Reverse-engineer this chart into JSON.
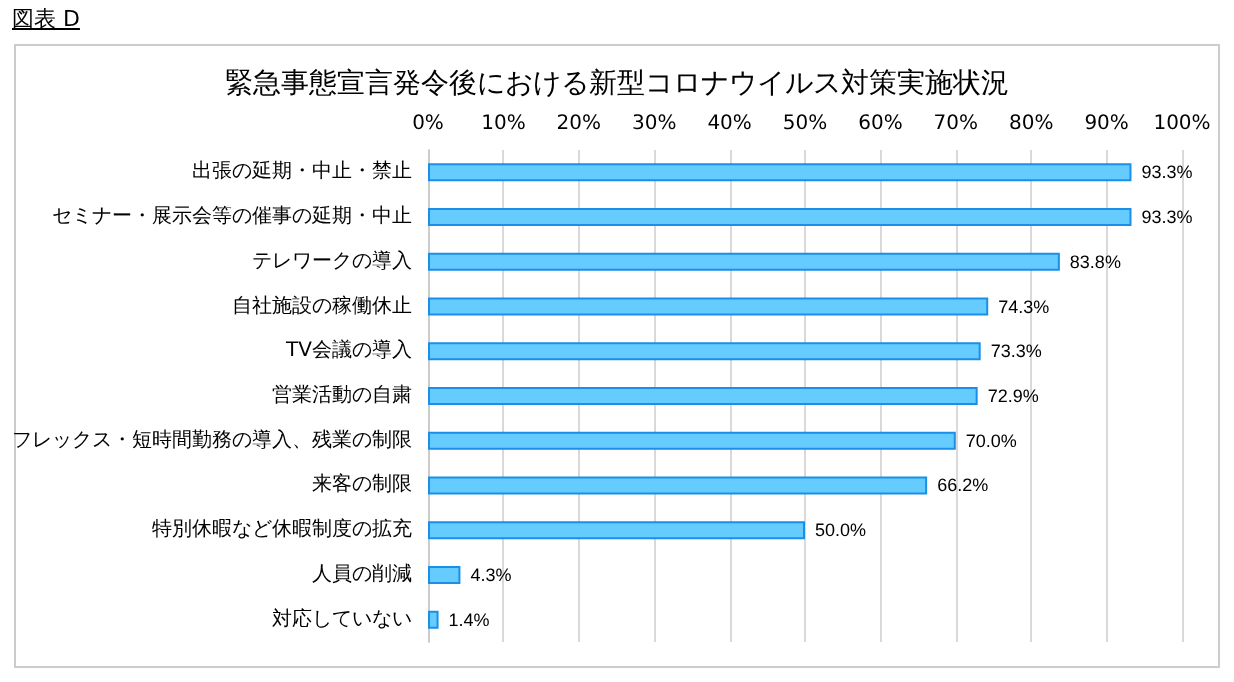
{
  "chart_data": {
    "type": "bar",
    "orientation": "horizontal",
    "title": "緊急事態宣言発令後における新型コロナウイルス対策実施状況",
    "annotations": [
      "図表 D"
    ],
    "categories": [
      "出張の延期・中止・禁止",
      "セミナー・展示会等の催事の延期・中止",
      "テレワークの導入",
      "自社施設の稼働休止",
      "TV会議の導入",
      "営業活動の自粛",
      "フレックス・短時間勤務の導入、残業の制限",
      "来客の制限",
      "特別休暇など休暇制度の拡充",
      "人員の削減",
      "対応していない"
    ],
    "values": [
      93.3,
      93.3,
      83.8,
      74.3,
      73.3,
      72.9,
      70.0,
      66.2,
      50.0,
      4.3,
      1.4
    ],
    "value_labels": [
      "93.3%",
      "93.3%",
      "83.8%",
      "74.3%",
      "73.3%",
      "72.9%",
      "70.0%",
      "66.2%",
      "50.0%",
      "4.3%",
      "1.4%"
    ],
    "color": "#66ccff",
    "xlim": [
      0,
      100
    ],
    "xticks": [
      {
        "value": 0,
        "label": "0%"
      },
      {
        "value": 10,
        "label": "10%"
      },
      {
        "value": 20,
        "label": "20%"
      },
      {
        "value": 30,
        "label": "30%"
      },
      {
        "value": 40,
        "label": "40%"
      },
      {
        "value": 50,
        "label": "50%"
      },
      {
        "value": 60,
        "label": "60%"
      },
      {
        "value": 70,
        "label": "70%"
      },
      {
        "value": 80,
        "label": "80%"
      },
      {
        "value": 90,
        "label": "90%"
      },
      {
        "value": 100,
        "label": "100%"
      }
    ],
    "grid": "x"
  }
}
